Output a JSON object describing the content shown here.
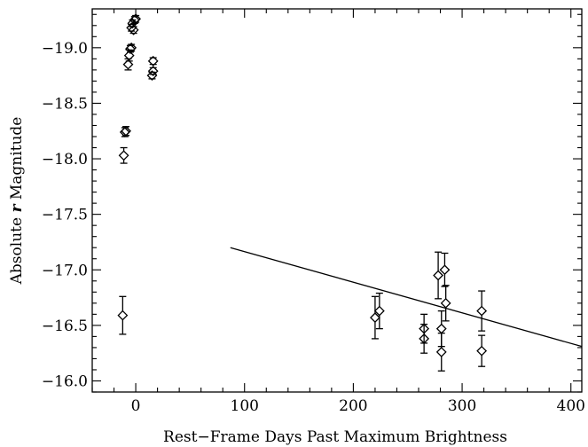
{
  "chart_data": {
    "type": "scatter",
    "xlabel": "Rest−Frame Days Past Maximum Brightness",
    "ylabel_prefix": "Absolute ",
    "ylabel_italic": "r",
    "ylabel_suffix": " Magnitude",
    "xlim": [
      -40,
      410
    ],
    "ylim": [
      -15.9,
      -19.35
    ],
    "y_inverted": true,
    "x_major_ticks": [
      0,
      100,
      200,
      300,
      400
    ],
    "x_tick_labels": [
      "0",
      "100",
      "200",
      "300",
      "400"
    ],
    "x_minor_step": 20,
    "y_major_ticks": [
      -16.0,
      -16.5,
      -17.0,
      -17.5,
      -18.0,
      -18.5,
      -19.0
    ],
    "y_tick_labels": [
      "−16.0",
      "−16.5",
      "−17.0",
      "−17.5",
      "−18.0",
      "−18.5",
      "−19.0"
    ],
    "y_minor_step": 0.1,
    "points": [
      {
        "x": -12,
        "y": -16.59,
        "err": 0.17
      },
      {
        "x": -11,
        "y": -18.03,
        "err": 0.07
      },
      {
        "x": -10,
        "y": -18.24,
        "err": 0.04
      },
      {
        "x": -9,
        "y": -18.25,
        "err": 0.04
      },
      {
        "x": -7,
        "y": -18.85,
        "err": 0.05
      },
      {
        "x": -6,
        "y": -18.93,
        "err": 0.05
      },
      {
        "x": -5,
        "y": -18.99,
        "err": 0.03
      },
      {
        "x": -4,
        "y": -19.0,
        "err": 0.03
      },
      {
        "x": -4,
        "y": -19.18,
        "err": 0.03
      },
      {
        "x": -3,
        "y": -19.22,
        "err": 0.03
      },
      {
        "x": -2,
        "y": -19.16,
        "err": 0.03
      },
      {
        "x": -1,
        "y": -19.25,
        "err": 0.03
      },
      {
        "x": 0,
        "y": -19.26,
        "err": 0.03
      },
      {
        "x": 15,
        "y": -18.75,
        "err": 0.03
      },
      {
        "x": 16,
        "y": -18.79,
        "err": 0.03
      },
      {
        "x": 16,
        "y": -18.88,
        "err": 0.03
      },
      {
        "x": 220,
        "y": -16.57,
        "err": 0.19
      },
      {
        "x": 224,
        "y": -16.63,
        "err": 0.16
      },
      {
        "x": 265,
        "y": -16.38,
        "err": 0.13
      },
      {
        "x": 265,
        "y": -16.47,
        "err": 0.13
      },
      {
        "x": 278,
        "y": -16.95,
        "err": 0.21
      },
      {
        "x": 281,
        "y": -16.47,
        "err": 0.16
      },
      {
        "x": 281,
        "y": -16.26,
        "err": 0.17
      },
      {
        "x": 284,
        "y": -17.0,
        "err": 0.15
      },
      {
        "x": 285,
        "y": -16.7,
        "err": 0.16
      },
      {
        "x": 318,
        "y": -16.63,
        "err": 0.18
      },
      {
        "x": 318,
        "y": -16.27,
        "err": 0.14
      }
    ],
    "fit_line": {
      "x": [
        87,
        410
      ],
      "y": [
        -17.2,
        -16.31
      ]
    }
  }
}
